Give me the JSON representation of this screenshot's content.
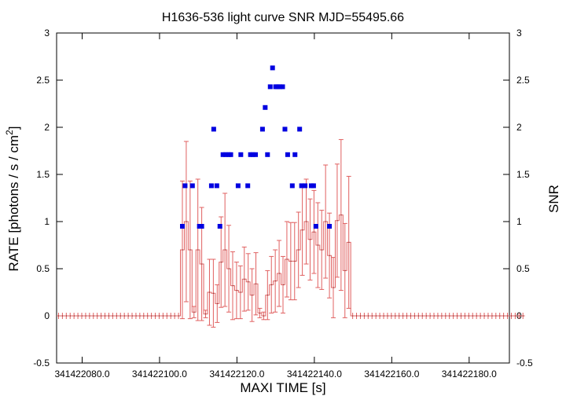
{
  "chart_data": {
    "type": "line",
    "title": "H1636-536 light curve  SNR MJD=55495.66",
    "xlabel": "MAXI TIME [s]",
    "ylabel": "RATE [photons / s / cm",
    "ylabel_sup": "2",
    "ylabel_close": "]",
    "y2label": "SNR",
    "xlim": [
      341422073.4,
      341422190.4
    ],
    "ylim": [
      -0.5,
      3
    ],
    "y2lim": [
      -0.5,
      3
    ],
    "x_ticks": [
      {
        "value": 341422080,
        "label": "341422080.0"
      },
      {
        "value": 341422100,
        "label": "341422100.0"
      },
      {
        "value": 341422120,
        "label": "341422120.0"
      },
      {
        "value": 341422140,
        "label": "341422140.0"
      },
      {
        "value": 341422160,
        "label": "341422160.0"
      },
      {
        "value": 341422180,
        "label": "341422180.0"
      }
    ],
    "y_ticks": [
      {
        "value": -0.5,
        "label": "-0.5"
      },
      {
        "value": 0,
        "label": "0"
      },
      {
        "value": 0.5,
        "label": "0.5"
      },
      {
        "value": 1,
        "label": "1"
      },
      {
        "value": 1.5,
        "label": "1.5"
      },
      {
        "value": 2,
        "label": "2"
      },
      {
        "value": 2.5,
        "label": "2.5"
      },
      {
        "value": 3,
        "label": "3"
      }
    ],
    "y2_ticks": [
      {
        "value": -0.5,
        "label": "-0.5"
      },
      {
        "value": 0,
        "label": "0"
      },
      {
        "value": 0.5,
        "label": "0.5"
      },
      {
        "value": 1,
        "label": "1"
      },
      {
        "value": 1.5,
        "label": "1.5"
      },
      {
        "value": 2,
        "label": "2"
      },
      {
        "value": 2.5,
        "label": "2.5"
      },
      {
        "value": 3,
        "label": "3"
      }
    ],
    "series": [
      {
        "style": "step-with-errorbars",
        "color": "#e06060",
        "start": 341422073.4,
        "step": 1,
        "values": [
          0,
          0,
          0,
          0,
          0,
          0,
          0,
          0,
          0,
          0,
          0,
          0,
          0,
          0,
          0,
          0,
          0,
          0,
          0,
          0,
          0,
          0,
          0,
          0,
          0,
          0,
          0,
          0,
          0,
          0,
          0,
          0,
          0.7,
          1.0,
          0.7,
          0.04,
          0.7,
          0.55,
          0.02,
          0.25,
          0.24,
          0.13,
          0.57,
          0.7,
          0.5,
          0.32,
          0.27,
          0.25,
          0.39,
          0.36,
          0.22,
          0.34,
          0.03,
          0.0,
          0.22,
          0.33,
          0.37,
          0.45,
          0.33,
          0.6,
          0.58,
          0.58,
          0.7,
          0.91,
          1.0,
          0.81,
          0.89,
          0.75,
          0.7,
          1.0,
          0.64,
          0.3,
          1.01,
          1.07,
          0.48,
          0.78,
          0,
          0,
          0,
          0,
          0,
          0,
          0,
          0,
          0,
          0,
          0,
          0,
          0,
          0,
          0,
          0,
          0,
          0,
          0,
          0,
          0,
          0,
          0,
          0,
          0,
          0,
          0,
          0,
          0,
          0,
          0,
          0,
          0,
          0,
          0,
          0,
          0,
          0,
          0,
          0,
          0,
          0,
          0,
          0,
          0
        ],
        "errors": [
          0,
          0,
          0,
          0,
          0,
          0,
          0,
          0,
          0,
          0,
          0,
          0,
          0,
          0,
          0,
          0,
          0,
          0,
          0,
          0,
          0,
          0,
          0,
          0,
          0,
          0,
          0,
          0,
          0,
          0,
          0,
          0,
          0.73,
          0.85,
          0.73,
          0.06,
          0.75,
          0.6,
          0.04,
          0.35,
          0.36,
          0.2,
          0.48,
          0.6,
          0.46,
          0.36,
          0.3,
          0.28,
          0.34,
          0.3,
          0.28,
          0.33,
          0.05,
          0.04,
          0.26,
          0.3,
          0.33,
          0.35,
          0.3,
          0.4,
          0.41,
          0.41,
          0.4,
          0.48,
          0.45,
          0.43,
          0.44,
          0.45,
          0.42,
          0.6,
          0.45,
          0.32,
          0.6,
          0.8,
          0.5,
          0.7,
          0,
          0,
          0,
          0,
          0,
          0,
          0,
          0,
          0,
          0,
          0,
          0,
          0,
          0,
          0,
          0,
          0,
          0,
          0,
          0,
          0,
          0,
          0,
          0,
          0,
          0,
          0,
          0,
          0,
          0,
          0,
          0,
          0,
          0,
          0,
          0,
          0,
          0,
          0,
          0,
          0,
          0,
          0,
          0,
          0
        ]
      },
      {
        "style": "points",
        "axis": "right",
        "color": "#0000e0",
        "x": [
          341422105.9,
          341422106.6,
          341422108.5,
          341422110.3,
          341422110.9,
          341422113.4,
          341422114.0,
          341422114.8,
          341422115.6,
          341422116.4,
          341422117.1,
          341422117.8,
          341422118.4,
          341422120.3,
          341422121.0,
          341422122.8,
          341422123.5,
          341422124.1,
          341422124.8,
          341422126.6,
          341422127.3,
          341422127.9,
          341422128.6,
          341422129.2,
          341422130.0,
          341422130.5,
          341422131.1,
          341422131.8,
          341422132.4,
          341422133.1,
          341422134.3,
          341422135.0,
          341422136.2,
          341422136.7,
          341422137.6,
          341422139.2,
          341422139.8,
          341422140.4,
          341422143.9
        ],
        "values": [
          0.95,
          1.38,
          1.38,
          0.95,
          0.95,
          1.38,
          1.98,
          1.38,
          0.95,
          1.71,
          1.71,
          1.71,
          1.71,
          1.38,
          1.71,
          1.38,
          1.71,
          1.71,
          1.71,
          1.98,
          2.21,
          1.71,
          2.43,
          2.63,
          2.43,
          2.43,
          2.43,
          2.43,
          1.98,
          1.71,
          1.38,
          1.71,
          1.98,
          1.38,
          1.38,
          1.38,
          1.38,
          0.95,
          0.95
        ]
      }
    ],
    "grid": false,
    "legend": "none"
  }
}
